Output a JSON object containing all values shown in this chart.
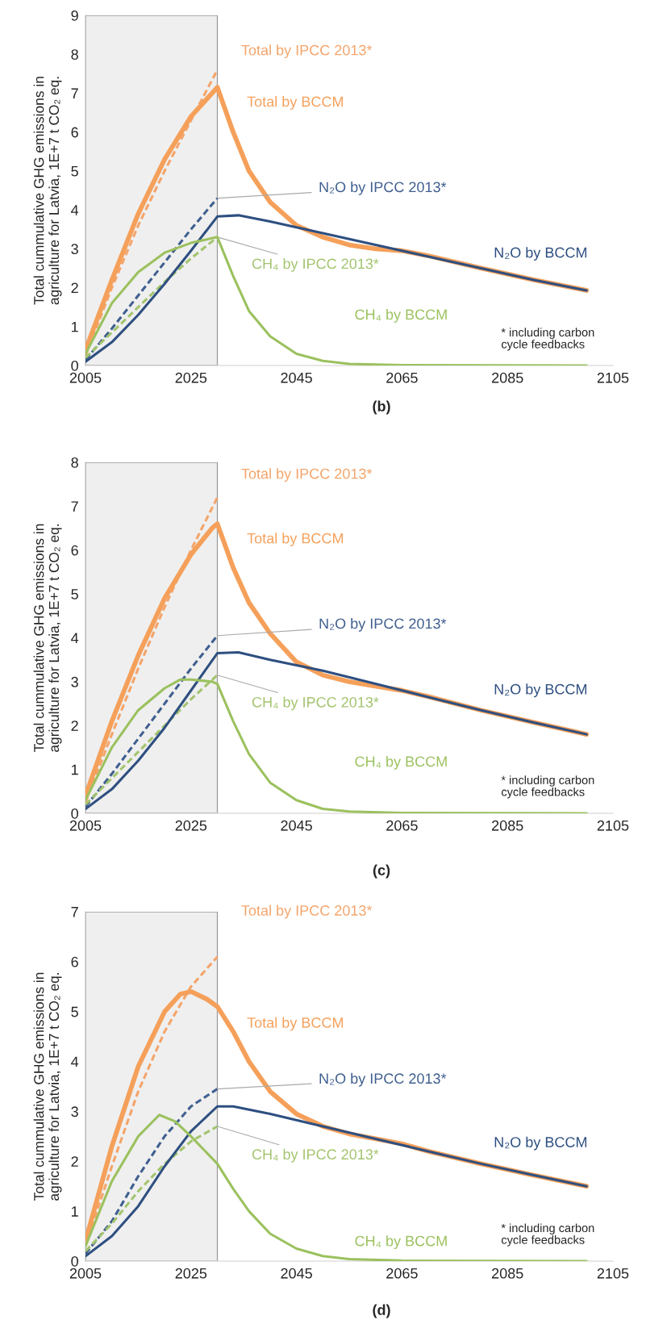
{
  "chart_data": [
    {
      "type": "line",
      "ylabel": "Total cummulative GHG emissions in\nagriculture for Latvia, 1E+7 t CO₂ eq.",
      "xlim": [
        2005,
        2105
      ],
      "xticks": [
        2005,
        2025,
        2045,
        2065,
        2085,
        2105
      ],
      "ylim": [
        0,
        9
      ],
      "yticks": [
        0,
        1,
        2,
        3,
        4,
        5,
        6,
        7,
        8,
        9
      ],
      "grid": false,
      "legend": false,
      "bands": [
        {
          "axis": "x",
          "from": 2005,
          "to": 2030,
          "color": "#efefef"
        }
      ],
      "annotations": [
        "* including carbon\ncycle feedbacks",
        "(b)"
      ],
      "series": [
        {
          "name": "Total by IPCC 2013*",
          "color": "#f4a46a",
          "line_style": "dashed",
          "x": [
            2005,
            2010,
            2015,
            2020,
            2025,
            2030
          ],
          "values": [
            0.25,
            2.0,
            3.6,
            5.0,
            6.3,
            7.6
          ]
        },
        {
          "name": "Total by BCCM",
          "color": "#f5a05a",
          "line_style": "solid",
          "x": [
            2005,
            2010,
            2015,
            2020,
            2025,
            2030,
            2033,
            2036,
            2040,
            2045,
            2050,
            2055,
            2060,
            2065,
            2070,
            2080,
            2090,
            2100
          ],
          "values": [
            0.4,
            2.2,
            3.9,
            5.3,
            6.4,
            7.15,
            6.0,
            5.0,
            4.2,
            3.6,
            3.3,
            3.1,
            3.0,
            2.95,
            2.82,
            2.5,
            2.2,
            1.93
          ]
        },
        {
          "name": "N₂O by IPCC 2013*",
          "color": "#3f5f8f",
          "line_style": "dashed",
          "x": [
            2005,
            2010,
            2015,
            2020,
            2025,
            2030
          ],
          "values": [
            0.15,
            0.95,
            1.8,
            2.65,
            3.5,
            4.3
          ]
        },
        {
          "name": "N₂O by BCCM",
          "color": "#2e4f80",
          "line_style": "solid",
          "x": [
            2005,
            2010,
            2015,
            2020,
            2025,
            2030,
            2034,
            2040,
            2050,
            2060,
            2070,
            2080,
            2090,
            2100
          ],
          "values": [
            0.1,
            0.6,
            1.3,
            2.1,
            2.95,
            3.83,
            3.86,
            3.7,
            3.4,
            3.1,
            2.8,
            2.5,
            2.2,
            1.93
          ]
        },
        {
          "name": "CH₄ by IPCC 2013*",
          "color": "#a3c46e",
          "line_style": "dashed",
          "x": [
            2005,
            2010,
            2015,
            2020,
            2025,
            2030
          ],
          "values": [
            0.2,
            0.85,
            1.5,
            2.15,
            2.75,
            3.3
          ]
        },
        {
          "name": "CH₄ by BCCM",
          "color": "#9bc15e",
          "line_style": "solid",
          "x": [
            2005,
            2010,
            2015,
            2020,
            2025,
            2030,
            2033,
            2036,
            2040,
            2045,
            2050,
            2055,
            2065,
            2100
          ],
          "values": [
            0.3,
            1.6,
            2.4,
            2.9,
            3.15,
            3.3,
            2.3,
            1.4,
            0.75,
            0.3,
            0.12,
            0.04,
            0.01,
            0
          ]
        }
      ]
    },
    {
      "type": "line",
      "ylabel": "Total cummulative GHG emissions in\nagriculture for Latvia, 1E+7 t CO₂ eq.",
      "xlim": [
        2005,
        2105
      ],
      "xticks": [
        2005,
        2025,
        2045,
        2065,
        2085,
        2105
      ],
      "ylim": [
        0,
        8
      ],
      "yticks": [
        0,
        1,
        2,
        3,
        4,
        5,
        6,
        7,
        8
      ],
      "grid": false,
      "legend": false,
      "bands": [
        {
          "axis": "x",
          "from": 2005,
          "to": 2030,
          "color": "#efefef"
        }
      ],
      "annotations": [
        "* including carbon\ncycle feedbacks",
        "(c)"
      ],
      "series": [
        {
          "name": "Total by IPCC 2013*",
          "color": "#f4a46a",
          "line_style": "dashed",
          "x": [
            2005,
            2010,
            2015,
            2020,
            2025,
            2030
          ],
          "values": [
            0.25,
            1.8,
            3.3,
            4.7,
            6.0,
            7.2
          ]
        },
        {
          "name": "Total by BCCM",
          "color": "#f5a05a",
          "line_style": "solid",
          "x": [
            2005,
            2010,
            2015,
            2020,
            2025,
            2029,
            2030,
            2033,
            2036,
            2040,
            2045,
            2050,
            2055,
            2060,
            2065,
            2070,
            2080,
            2090,
            2100
          ],
          "values": [
            0.4,
            2.1,
            3.6,
            4.9,
            5.9,
            6.5,
            6.6,
            5.6,
            4.8,
            4.1,
            3.45,
            3.15,
            3.0,
            2.9,
            2.8,
            2.66,
            2.35,
            2.07,
            1.8
          ]
        },
        {
          "name": "N₂O by IPCC 2013*",
          "color": "#3f5f8f",
          "line_style": "dashed",
          "x": [
            2005,
            2010,
            2015,
            2020,
            2025,
            2030
          ],
          "values": [
            0.15,
            0.9,
            1.7,
            2.5,
            3.3,
            4.05
          ]
        },
        {
          "name": "N₂O by BCCM",
          "color": "#2e4f80",
          "line_style": "solid",
          "x": [
            2005,
            2010,
            2015,
            2020,
            2025,
            2030,
            2034,
            2040,
            2050,
            2060,
            2070,
            2080,
            2090,
            2100
          ],
          "values": [
            0.1,
            0.55,
            1.2,
            1.95,
            2.8,
            3.65,
            3.67,
            3.5,
            3.25,
            2.95,
            2.65,
            2.35,
            2.07,
            1.8
          ]
        },
        {
          "name": "CH₄ by IPCC 2013*",
          "color": "#a3c46e",
          "line_style": "dashed",
          "x": [
            2005,
            2010,
            2015,
            2020,
            2025,
            2030
          ],
          "values": [
            0.2,
            0.8,
            1.4,
            2.0,
            2.6,
            3.15
          ]
        },
        {
          "name": "CH₄ by BCCM",
          "color": "#9bc15e",
          "line_style": "solid",
          "x": [
            2005,
            2010,
            2015,
            2020,
            2023,
            2025,
            2029,
            2030,
            2033,
            2036,
            2040,
            2045,
            2050,
            2055,
            2065,
            2100
          ],
          "values": [
            0.3,
            1.5,
            2.35,
            2.85,
            3.05,
            3.05,
            3.0,
            2.95,
            2.1,
            1.35,
            0.7,
            0.3,
            0.1,
            0.04,
            0.01,
            0
          ]
        }
      ]
    },
    {
      "type": "line",
      "ylabel": "Total cummulative GHG emissions in\nagriculture for Latvia, 1E+7 t CO₂ eq.",
      "xlim": [
        2005,
        2105
      ],
      "xticks": [
        2005,
        2025,
        2045,
        2065,
        2085,
        2105
      ],
      "ylim": [
        0,
        7
      ],
      "yticks": [
        0,
        1,
        2,
        3,
        4,
        5,
        6,
        7
      ],
      "grid": false,
      "legend": false,
      "bands": [
        {
          "axis": "x",
          "from": 2005,
          "to": 2030,
          "color": "#efefef"
        }
      ],
      "annotations": [
        "* including carbon\ncycle feedbacks",
        "(d)"
      ],
      "series": [
        {
          "name": "Total by IPCC 2013*",
          "color": "#f4a46a",
          "line_style": "dashed",
          "x": [
            2005,
            2010,
            2015,
            2020,
            2025,
            2030
          ],
          "values": [
            0.3,
            1.9,
            3.4,
            4.6,
            5.5,
            6.1
          ]
        },
        {
          "name": "Total by BCCM",
          "color": "#f5a05a",
          "line_style": "solid",
          "x": [
            2005,
            2010,
            2015,
            2020,
            2023,
            2025,
            2028,
            2030,
            2033,
            2036,
            2040,
            2045,
            2050,
            2055,
            2060,
            2065,
            2070,
            2080,
            2090,
            2100
          ],
          "values": [
            0.4,
            2.3,
            3.9,
            5.0,
            5.35,
            5.4,
            5.25,
            5.1,
            4.6,
            4.0,
            3.4,
            2.95,
            2.7,
            2.55,
            2.45,
            2.35,
            2.2,
            1.95,
            1.72,
            1.5
          ]
        },
        {
          "name": "N₂O by IPCC 2013*",
          "color": "#3f5f8f",
          "line_style": "dashed",
          "x": [
            2005,
            2010,
            2015,
            2020,
            2025,
            2030
          ],
          "values": [
            0.15,
            0.8,
            1.7,
            2.5,
            3.1,
            3.45
          ]
        },
        {
          "name": "N₂O by BCCM",
          "color": "#2e4f80",
          "line_style": "solid",
          "x": [
            2005,
            2010,
            2015,
            2020,
            2025,
            2030,
            2033,
            2040,
            2050,
            2060,
            2070,
            2080,
            2090,
            2100
          ],
          "values": [
            0.1,
            0.5,
            1.1,
            1.9,
            2.6,
            3.1,
            3.1,
            2.95,
            2.7,
            2.45,
            2.2,
            1.95,
            1.72,
            1.5
          ]
        },
        {
          "name": "CH₄ by IPCC 2013*",
          "color": "#a3c46e",
          "line_style": "dashed",
          "x": [
            2005,
            2010,
            2015,
            2020,
            2025,
            2030
          ],
          "values": [
            0.2,
            0.75,
            1.4,
            1.95,
            2.4,
            2.7
          ]
        },
        {
          "name": "CH₄ by BCCM",
          "color": "#9bc15e",
          "line_style": "solid",
          "x": [
            2005,
            2010,
            2015,
            2019,
            2022,
            2025,
            2030,
            2033,
            2036,
            2040,
            2045,
            2050,
            2055,
            2065,
            2100
          ],
          "values": [
            0.3,
            1.6,
            2.5,
            2.93,
            2.8,
            2.5,
            1.95,
            1.45,
            1.0,
            0.55,
            0.25,
            0.1,
            0.04,
            0.01,
            0
          ]
        }
      ]
    }
  ]
}
